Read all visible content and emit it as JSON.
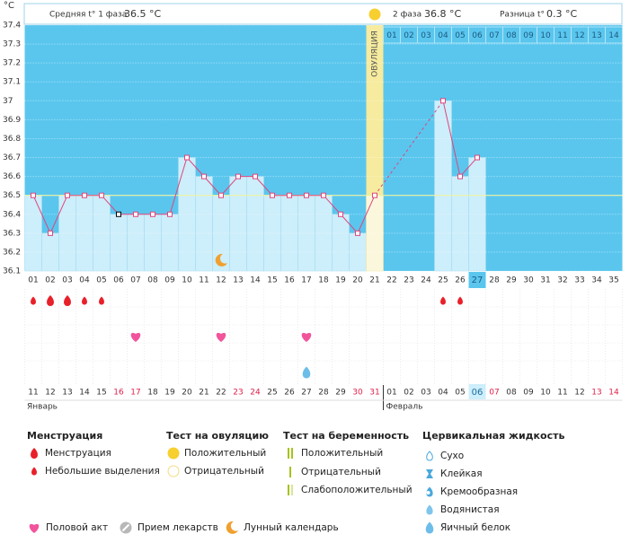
{
  "chart_data": {
    "type": "line",
    "y_label": "°C",
    "categories": [
      "01",
      "02",
      "03",
      "04",
      "05",
      "06",
      "07",
      "08",
      "09",
      "10",
      "11",
      "12",
      "13",
      "14",
      "15",
      "16",
      "17",
      "18",
      "19",
      "20",
      "21",
      "22",
      "23",
      "24",
      "25",
      "26",
      "27",
      "28",
      "29",
      "30",
      "31",
      "32",
      "33",
      "34",
      "35"
    ],
    "values": [
      36.5,
      36.3,
      36.5,
      36.5,
      36.5,
      36.4,
      36.4,
      36.4,
      36.4,
      36.7,
      36.6,
      36.5,
      36.6,
      36.6,
      36.5,
      36.5,
      36.5,
      36.5,
      36.4,
      36.3,
      36.5,
      null,
      null,
      null,
      37.0,
      36.6,
      36.7,
      null,
      null,
      null,
      null,
      null,
      null,
      null,
      null
    ],
    "color": "#e0457b",
    "bar_color": "#cdeefb",
    "background_color": "#5ac6ee",
    "ylim": [
      36.1,
      37.4
    ],
    "yticks": [
      37.4,
      37.3,
      37.2,
      37.1,
      37,
      36.9,
      36.8,
      36.7,
      36.6,
      36.5,
      36.4,
      36.3,
      36.2,
      36.1
    ],
    "grid": true,
    "coverline": 36.5,
    "excluded": [
      "06"
    ],
    "ovulation_day": "21",
    "ovulation_label": "ОВУЛЯЦИЯ",
    "phase2_days": [
      "01",
      "02",
      "03",
      "04",
      "05",
      "06",
      "07",
      "08",
      "09",
      "10",
      "11",
      "12",
      "13",
      "14"
    ],
    "today": "27",
    "dates": [
      "11",
      "12",
      "13",
      "14",
      "15",
      "16",
      "17",
      "18",
      "19",
      "20",
      "21",
      "22",
      "23",
      "24",
      "25",
      "26",
      "27",
      "28",
      "29",
      "30",
      "31",
      "01",
      "02",
      "03",
      "04",
      "05",
      "06",
      "07",
      "08",
      "09",
      "10",
      "11",
      "12",
      "13",
      "14"
    ],
    "weekend": [
      false,
      false,
      false,
      false,
      false,
      true,
      true,
      false,
      false,
      false,
      false,
      false,
      true,
      true,
      false,
      false,
      false,
      false,
      false,
      true,
      true,
      false,
      false,
      false,
      false,
      false,
      true,
      true,
      false,
      false,
      false,
      false,
      false,
      true,
      true
    ],
    "months": [
      "Январь",
      "Февраль"
    ],
    "menstruation_heavy": [
      "02",
      "03"
    ],
    "menstruation_light": [
      "01",
      "04",
      "05",
      "25",
      "26"
    ],
    "intercourse": [
      "07",
      "12",
      "17"
    ],
    "egg_white": [
      "17"
    ],
    "moon": [
      "12"
    ]
  },
  "header": {
    "phase1": "Средняя t° 1 фаза",
    "phase1_temp": "36.5 °C",
    "phase2": "2 фаза",
    "phase2_temp": "36.8 °C",
    "diff": "Разница t°",
    "diff_value": "0.3 °C"
  },
  "legend": {
    "sections": [
      {
        "title": "Менструация",
        "items": [
          "Менструация",
          "Небольшие выделения"
        ]
      },
      {
        "title": "Тест на овуляцию",
        "items": [
          "Положительный",
          "Отрицательный"
        ]
      },
      {
        "title": "Тест на беременность",
        "items": [
          "Положительный",
          "Отрицательный",
          "Слабоположительный"
        ]
      },
      {
        "title": "Цервикальная жидкость",
        "items": [
          "Сухо",
          "Клейкая",
          "Кремообразная",
          "Водянистая",
          "Яичный белок"
        ]
      }
    ],
    "bottom": [
      "Половой акт",
      "Прием лекарств",
      "Лунный календарь"
    ]
  }
}
